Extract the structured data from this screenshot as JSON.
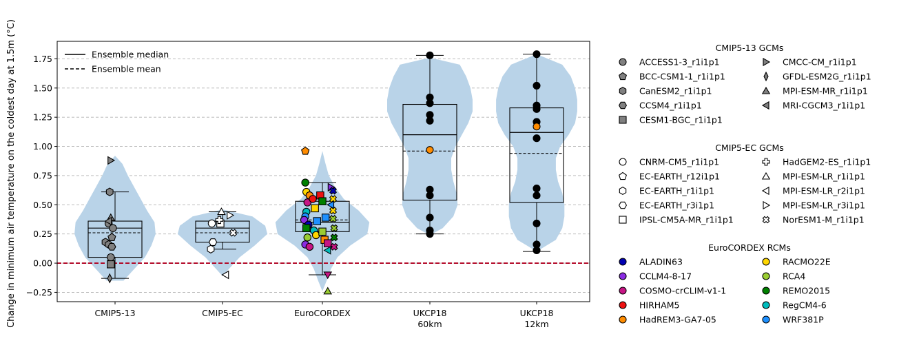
{
  "chart_data": {
    "type": "violin_box_scatter",
    "ylabel": "Change in minimum air temperature on the coldest day at 1.5m (°C)",
    "ylim": [
      -0.33,
      1.9
    ],
    "yticks": [
      -0.25,
      0.0,
      0.25,
      0.5,
      0.75,
      1.0,
      1.25,
      1.5,
      1.75
    ],
    "ytick_labels": [
      "−0.25",
      "0.00",
      "0.25",
      "0.50",
      "0.75",
      "1.00",
      "1.25",
      "1.50",
      "1.75"
    ],
    "grid": "y dashed",
    "reference_line": {
      "y": 0.0,
      "color": "#b00020",
      "style": "dashed"
    },
    "categories": [
      "CMIP5-13",
      "CMIP5-EC",
      "EuroCORDEX",
      "UKCP18\n60km",
      "UKCP18\n12km"
    ],
    "legend_lines": [
      {
        "label": "Ensemble median",
        "style": "solid"
      },
      {
        "label": "Ensemble mean",
        "style": "dashed"
      }
    ],
    "boxes": [
      {
        "q1": 0.05,
        "median": 0.3,
        "q3": 0.36,
        "whisker_low": -0.13,
        "whisker_high": 0.61,
        "mean": 0.26
      },
      {
        "q1": 0.18,
        "median": 0.3,
        "q3": 0.36,
        "whisker_low": 0.12,
        "whisker_high": 0.44,
        "mean": 0.26
      },
      {
        "q1": 0.27,
        "median": 0.35,
        "q3": 0.53,
        "whisker_low": -0.1,
        "whisker_high": 0.69,
        "mean": 0.37
      },
      {
        "q1": 0.54,
        "median": 1.1,
        "q3": 1.36,
        "whisker_low": 0.25,
        "whisker_high": 1.78,
        "mean": 0.96
      },
      {
        "q1": 0.52,
        "median": 1.12,
        "q3": 1.33,
        "whisker_low": 0.1,
        "whisker_high": 1.79,
        "mean": 0.94
      }
    ],
    "violins": [
      {
        "y": [
          -0.15,
          -0.05,
          0.05,
          0.15,
          0.25,
          0.35,
          0.45,
          0.55,
          0.65,
          0.75,
          0.85,
          0.92
        ],
        "w": [
          0.08,
          0.18,
          0.28,
          0.34,
          0.38,
          0.37,
          0.3,
          0.24,
          0.18,
          0.12,
          0.07,
          0.0
        ]
      },
      {
        "y": [
          -0.11,
          -0.05,
          0.05,
          0.15,
          0.25,
          0.32,
          0.4,
          0.46
        ],
        "w": [
          0.0,
          0.06,
          0.16,
          0.3,
          0.42,
          0.4,
          0.28,
          0.0
        ]
      },
      {
        "y": [
          -0.24,
          -0.15,
          -0.05,
          0.05,
          0.15,
          0.25,
          0.35,
          0.45,
          0.55,
          0.65,
          0.75,
          0.85,
          0.96
        ],
        "w": [
          0.0,
          0.04,
          0.08,
          0.14,
          0.26,
          0.42,
          0.44,
          0.34,
          0.2,
          0.12,
          0.06,
          0.03,
          0.0
        ]
      },
      {
        "y": [
          0.24,
          0.3,
          0.4,
          0.5,
          0.6,
          0.7,
          0.8,
          0.9,
          1.0,
          1.1,
          1.2,
          1.3,
          1.4,
          1.5,
          1.6,
          1.7,
          1.76
        ],
        "w": [
          0.0,
          0.12,
          0.22,
          0.26,
          0.25,
          0.22,
          0.2,
          0.2,
          0.24,
          0.3,
          0.36,
          0.4,
          0.4,
          0.38,
          0.34,
          0.28,
          0.0
        ]
      },
      {
        "y": [
          0.1,
          0.2,
          0.3,
          0.4,
          0.5,
          0.6,
          0.7,
          0.8,
          0.9,
          1.0,
          1.1,
          1.2,
          1.3,
          1.4,
          1.5,
          1.6,
          1.7,
          1.79
        ],
        "w": [
          0.0,
          0.18,
          0.24,
          0.26,
          0.26,
          0.24,
          0.2,
          0.18,
          0.18,
          0.22,
          0.3,
          0.36,
          0.38,
          0.38,
          0.36,
          0.32,
          0.24,
          0.0
        ]
      }
    ],
    "legend_groups": [
      {
        "title": "CMIP5-13 GCMs",
        "items": [
          {
            "label": "ACCESS1-3_r1i1p1",
            "marker": "circle",
            "color": "#808080"
          },
          {
            "label": "BCC-CSM1-1_r1i1p1",
            "marker": "pentagon",
            "color": "#808080"
          },
          {
            "label": "CanESM2_r1i1p1",
            "marker": "hexagon",
            "color": "#808080"
          },
          {
            "label": "CCSM4_r1i1p1",
            "marker": "hexagon2",
            "color": "#808080"
          },
          {
            "label": "CESM1-BGC_r1i1p1",
            "marker": "square",
            "color": "#808080"
          },
          {
            "label": "CMCC-CM_r1i1p1",
            "marker": "tri-right",
            "color": "#808080"
          },
          {
            "label": "GFDL-ESM2G_r1i1p1",
            "marker": "thin-diamond",
            "color": "#808080"
          },
          {
            "label": "MPI-ESM-MR_r1i1p1",
            "marker": "tri-up",
            "color": "#808080"
          },
          {
            "label": "MRI-CGCM3_r1i1p1",
            "marker": "tri-left",
            "color": "#808080"
          }
        ]
      },
      {
        "title": "CMIP5-EC GCMs",
        "items": [
          {
            "label": "CNRM-CM5_r1i1p1",
            "marker": "circle",
            "color": "#ffffff"
          },
          {
            "label": "EC-EARTH_r12i1p1",
            "marker": "pentagon",
            "color": "#ffffff"
          },
          {
            "label": "EC-EARTH_r1i1p1",
            "marker": "hexagon",
            "color": "#ffffff"
          },
          {
            "label": "EC-EARTH_r3i1p1",
            "marker": "hexagon2",
            "color": "#ffffff"
          },
          {
            "label": "IPSL-CM5A-MR_r1i1p1",
            "marker": "square",
            "color": "#ffffff"
          },
          {
            "label": "HadGEM2-ES_r1i1p1",
            "marker": "plus",
            "color": "#ffffff"
          },
          {
            "label": "MPI-ESM-LR_r1i1p1",
            "marker": "tri-up",
            "color": "#ffffff"
          },
          {
            "label": "MPI-ESM-LR_r2i1p1",
            "marker": "tri-left",
            "color": "#ffffff"
          },
          {
            "label": "MPI-ESM-LR_r3i1p1",
            "marker": "tri-right",
            "color": "#ffffff"
          },
          {
            "label": "NorESM1-M_r1i1p1",
            "marker": "x",
            "color": "#ffffff"
          }
        ]
      },
      {
        "title": "EuroCORDEX RCMs",
        "items": [
          {
            "label": "ALADIN63",
            "marker": "circle",
            "color": "#0000b3"
          },
          {
            "label": "CCLM4-8-17",
            "marker": "circle",
            "color": "#8a2be2"
          },
          {
            "label": "COSMO-crCLIM-v1-1",
            "marker": "circle",
            "color": "#c71585"
          },
          {
            "label": "HIRHAM5",
            "marker": "circle",
            "color": "#ee1111"
          },
          {
            "label": "HadREM3-GA7-05",
            "marker": "circle",
            "color": "#ff8c00"
          },
          {
            "label": "RACMO22E",
            "marker": "circle",
            "color": "#ffd700"
          },
          {
            "label": "RCA4",
            "marker": "circle",
            "color": "#9acd32"
          },
          {
            "label": "REMO2015",
            "marker": "circle",
            "color": "#008000"
          },
          {
            "label": "RegCM4-6",
            "marker": "circle",
            "color": "#00bcbc"
          },
          {
            "label": "WRF381P",
            "marker": "circle",
            "color": "#1e90ff"
          }
        ]
      }
    ],
    "series": [
      {
        "name": "CMIP5-13 GCMs",
        "category": 0,
        "points": [
          {
            "dx": -0.06,
            "y": 0.34,
            "marker": "circle",
            "color": "#808080"
          },
          {
            "dx": -0.03,
            "y": 0.22,
            "marker": "pentagon",
            "color": "#808080"
          },
          {
            "dx": -0.09,
            "y": 0.18,
            "marker": "hexagon",
            "color": "#808080"
          },
          {
            "dx": -0.06,
            "y": 0.16,
            "marker": "hexagon",
            "color": "#808080"
          },
          {
            "dx": -0.05,
            "y": 0.61,
            "marker": "hexagon",
            "color": "#808080"
          },
          {
            "dx": -0.03,
            "y": 0.14,
            "marker": "hexagon2",
            "color": "#808080"
          },
          {
            "dx": -0.02,
            "y": 0.3,
            "marker": "circle",
            "color": "#808080"
          },
          {
            "dx": -0.04,
            "y": 0.05,
            "marker": "circle",
            "color": "#808080"
          },
          {
            "dx": -0.04,
            "y": -0.01,
            "marker": "square",
            "color": "#808080"
          },
          {
            "dx": -0.04,
            "y": 0.88,
            "marker": "tri-right",
            "color": "#808080"
          },
          {
            "dx": -0.05,
            "y": -0.13,
            "marker": "thin-diamond",
            "color": "#808080"
          },
          {
            "dx": -0.04,
            "y": 0.39,
            "marker": "tri-up",
            "color": "#808080"
          },
          {
            "dx": -0.06,
            "y": 0.36,
            "marker": "tri-left",
            "color": "#808080"
          }
        ]
      },
      {
        "name": "CMIP5-EC GCMs",
        "category": 1,
        "points": [
          {
            "dx": -0.1,
            "y": 0.34,
            "marker": "circle",
            "color": "#ffffff"
          },
          {
            "dx": -0.02,
            "y": 0.35,
            "marker": "pentagon",
            "color": "#ffffff"
          },
          {
            "dx": -0.11,
            "y": 0.12,
            "marker": "hexagon",
            "color": "#ffffff"
          },
          {
            "dx": -0.09,
            "y": 0.18,
            "marker": "hexagon2",
            "color": "#ffffff"
          },
          {
            "dx": -0.02,
            "y": 0.34,
            "marker": "square",
            "color": "#ffffff"
          },
          {
            "dx": -0.03,
            "y": 0.37,
            "marker": "plus",
            "color": "#ffffff"
          },
          {
            "dx": -0.01,
            "y": 0.44,
            "marker": "tri-up",
            "color": "#ffffff"
          },
          {
            "dx": 0.03,
            "y": -0.1,
            "marker": "tri-left",
            "color": "#ffffff"
          },
          {
            "dx": 0.07,
            "y": 0.41,
            "marker": "tri-right",
            "color": "#ffffff"
          },
          {
            "dx": 0.1,
            "y": 0.26,
            "marker": "x",
            "color": "#ffffff"
          }
        ]
      },
      {
        "name": "EuroCORDEX RCMs",
        "category": 2,
        "points": [
          {
            "dx": -0.16,
            "y": 0.96,
            "marker": "pentagon",
            "color": "#ff8c00"
          },
          {
            "dx": -0.16,
            "y": 0.69,
            "marker": "circle",
            "color": "#008000"
          },
          {
            "dx": -0.15,
            "y": 0.61,
            "marker": "circle",
            "color": "#ffd700"
          },
          {
            "dx": -0.12,
            "y": 0.58,
            "marker": "circle",
            "color": "#ff8c00"
          },
          {
            "dx": -0.14,
            "y": 0.52,
            "marker": "circle",
            "color": "#c71585"
          },
          {
            "dx": -0.15,
            "y": 0.44,
            "marker": "circle",
            "color": "#00bcbc"
          },
          {
            "dx": -0.16,
            "y": 0.4,
            "marker": "circle",
            "color": "#1e90ff"
          },
          {
            "dx": -0.17,
            "y": 0.37,
            "marker": "circle",
            "color": "#8a2be2"
          },
          {
            "dx": -0.13,
            "y": 0.33,
            "marker": "circle",
            "color": "#0000b3"
          },
          {
            "dx": -0.15,
            "y": 0.3,
            "marker": "square",
            "color": "#008000"
          },
          {
            "dx": -0.14,
            "y": 0.22,
            "marker": "circle",
            "color": "#9acd32"
          },
          {
            "dx": -0.16,
            "y": 0.16,
            "marker": "circle",
            "color": "#8a2be2"
          },
          {
            "dx": -0.12,
            "y": 0.14,
            "marker": "circle",
            "color": "#c71585"
          },
          {
            "dx": -0.09,
            "y": 0.55,
            "marker": "circle",
            "color": "#ee1111"
          },
          {
            "dx": -0.07,
            "y": 0.47,
            "marker": "square",
            "color": "#ffd700"
          },
          {
            "dx": -0.05,
            "y": 0.36,
            "marker": "square",
            "color": "#1e90ff"
          },
          {
            "dx": -0.08,
            "y": 0.28,
            "marker": "circle",
            "color": "#00bcbc"
          },
          {
            "dx": -0.06,
            "y": 0.24,
            "marker": "circle",
            "color": "#ffd700"
          },
          {
            "dx": -0.02,
            "y": 0.58,
            "marker": "square",
            "color": "#ee1111"
          },
          {
            "dx": 0.0,
            "y": 0.53,
            "marker": "square",
            "color": "#008000"
          },
          {
            "dx": 0.03,
            "y": 0.39,
            "marker": "square",
            "color": "#1e90ff"
          },
          {
            "dx": 0.0,
            "y": 0.27,
            "marker": "square",
            "color": "#9acd32"
          },
          {
            "dx": 0.02,
            "y": 0.2,
            "marker": "square",
            "color": "#ff8c00"
          },
          {
            "dx": 0.05,
            "y": 0.17,
            "marker": "square",
            "color": "#c71585"
          },
          {
            "dx": 0.08,
            "y": 0.65,
            "marker": "tri-right",
            "color": "#8a2be2"
          },
          {
            "dx": 0.1,
            "y": 0.62,
            "marker": "x",
            "color": "#0000b3"
          },
          {
            "dx": 0.1,
            "y": 0.55,
            "marker": "x",
            "color": "#ffd700"
          },
          {
            "dx": 0.08,
            "y": 0.5,
            "marker": "tri-left",
            "color": "#1e90ff"
          },
          {
            "dx": 0.1,
            "y": 0.45,
            "marker": "x",
            "color": "#ffd700"
          },
          {
            "dx": 0.1,
            "y": 0.38,
            "marker": "x",
            "color": "#9acd32"
          },
          {
            "dx": 0.11,
            "y": 0.3,
            "marker": "x",
            "color": "#9acd32"
          },
          {
            "dx": 0.11,
            "y": 0.22,
            "marker": "x",
            "color": "#008000"
          },
          {
            "dx": 0.11,
            "y": 0.14,
            "marker": "x",
            "color": "#c71585"
          },
          {
            "dx": 0.05,
            "y": 0.11,
            "marker": "tri-left",
            "color": "#00bcbc"
          },
          {
            "dx": 0.05,
            "y": -0.1,
            "marker": "tri-down",
            "color": "#c71585"
          },
          {
            "dx": 0.05,
            "y": -0.24,
            "marker": "tri-up",
            "color": "#9acd32"
          }
        ]
      },
      {
        "name": "UKCP18 60km",
        "category": 3,
        "points": [
          {
            "y": 1.78,
            "color": "#000000"
          },
          {
            "y": 1.42,
            "color": "#000000"
          },
          {
            "y": 1.37,
            "color": "#000000"
          },
          {
            "y": 1.27,
            "color": "#000000"
          },
          {
            "y": 1.22,
            "color": "#000000"
          },
          {
            "y": 0.97,
            "color": "#ff8c00"
          },
          {
            "y": 0.63,
            "color": "#000000"
          },
          {
            "y": 0.58,
            "color": "#000000"
          },
          {
            "y": 0.39,
            "color": "#000000"
          },
          {
            "y": 0.28,
            "color": "#000000"
          },
          {
            "y": 0.25,
            "color": "#000000"
          }
        ]
      },
      {
        "name": "UKCP18 12km",
        "category": 4,
        "points": [
          {
            "y": 1.79,
            "color": "#000000"
          },
          {
            "y": 1.52,
            "color": "#000000"
          },
          {
            "y": 1.35,
            "color": "#000000"
          },
          {
            "y": 1.32,
            "color": "#000000"
          },
          {
            "y": 1.21,
            "color": "#000000"
          },
          {
            "y": 1.17,
            "color": "#ff8c00"
          },
          {
            "y": 1.07,
            "color": "#000000"
          },
          {
            "y": 0.64,
            "color": "#000000"
          },
          {
            "y": 0.58,
            "color": "#000000"
          },
          {
            "y": 0.34,
            "color": "#000000"
          },
          {
            "y": 0.16,
            "color": "#000000"
          },
          {
            "y": 0.11,
            "color": "#000000"
          }
        ]
      }
    ]
  },
  "colors": {
    "violin": "#b9d3e8",
    "zero_line": "#b00020",
    "grid": "#b0b0b0",
    "uk_point": "#000000"
  }
}
